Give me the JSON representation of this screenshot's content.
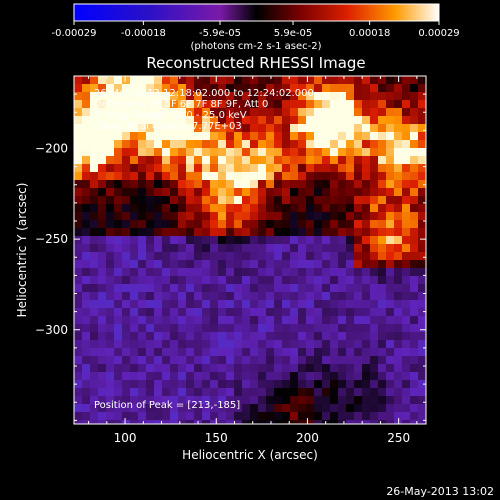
{
  "chart_data": {
    "type": "heatmap",
    "title": "Reconstructed RHESSI Image",
    "xlabel": "Heliocentric X (arcsec)",
    "ylabel": "Heliocentric Y (arcsec)",
    "xlim": [
      72,
      265
    ],
    "ylim": [
      -352,
      -160
    ],
    "xticks": [
      100,
      150,
      200,
      250
    ],
    "yticks": [
      -200,
      -250,
      -300
    ],
    "colorbar": {
      "ticks": [
        "-0.00029",
        "-0.00018",
        "-5.9e-05",
        "5.9e-05",
        "0.00018",
        "0.00029"
      ],
      "label": "(photons cm-2 s-1 asec-2)",
      "range": [
        -0.00029,
        0.00029
      ]
    },
    "annotations": [
      "26-May-2013 12:18:02.000 to 12:24:02.000",
      "Detectors: 3F 5F 6F 7F 8F 9F, Att 0",
      "Energy Range: 12.0 - 25.0 keV",
      "Clean    Total counts: 7.77E+03"
    ],
    "peak_label": "Position of Peak = [213,-185]",
    "peak_position": [
      213,
      -185
    ],
    "bright_sources": [
      {
        "x": 77,
        "y": -195,
        "intensity": 0.95
      },
      {
        "x": 104,
        "y": -172,
        "intensity": 0.85
      },
      {
        "x": 130,
        "y": -192,
        "intensity": 0.7
      },
      {
        "x": 213,
        "y": -185,
        "intensity": 1.0
      },
      {
        "x": 168,
        "y": -210,
        "intensity": 0.6
      },
      {
        "x": 255,
        "y": -200,
        "intensity": 0.8
      },
      {
        "x": 245,
        "y": -245,
        "intensity": 0.6
      },
      {
        "x": 152,
        "y": -232,
        "intensity": 0.55
      },
      {
        "x": 190,
        "y": -348,
        "intensity": 0.7
      },
      {
        "x": 225,
        "y": -335,
        "intensity": 0.35
      }
    ]
  },
  "footer": {
    "timestamp": "26-May-2013 13:02"
  }
}
